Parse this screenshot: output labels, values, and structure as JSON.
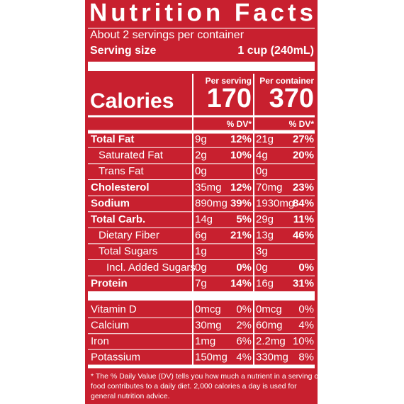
{
  "title": "Nutrition Facts",
  "servings": "About 2 servings per container",
  "serving_size_label": "Serving size",
  "serving_size": "1 cup (240mL)",
  "columns": [
    "Per serving",
    "Per container"
  ],
  "calories_label": "Calories",
  "calories": [
    "170",
    "370"
  ],
  "dv_header": "% DV*",
  "nutrients": [
    {
      "name": "Total Fat",
      "bold": true,
      "indent": 0,
      "serving": "9g",
      "serving_dv": "12%",
      "container": "21g",
      "container_dv": "27%"
    },
    {
      "name": "Saturated Fat",
      "bold": false,
      "indent": 1,
      "serving": "2g",
      "serving_dv": "10%",
      "container": "4g",
      "container_dv": "20%"
    },
    {
      "name": "Trans Fat",
      "bold": false,
      "indent": 1,
      "serving": "0g",
      "container": "0g"
    },
    {
      "name": "Cholesterol",
      "bold": true,
      "indent": 0,
      "serving": "35mg",
      "serving_dv": "12%",
      "container": "70mg",
      "container_dv": "23%"
    },
    {
      "name": "Sodium",
      "bold": true,
      "indent": 0,
      "serving": "890mg",
      "serving_dv": "39%",
      "container": "1930mg",
      "container_dv": "84%"
    },
    {
      "name": "Total Carb.",
      "bold": true,
      "indent": 0,
      "serving": "14g",
      "serving_dv": "5%",
      "container": "29g",
      "container_dv": "11%"
    },
    {
      "name": "Dietary Fiber",
      "bold": false,
      "indent": 1,
      "serving": "6g",
      "serving_dv": "21%",
      "container": "13g",
      "container_dv": "46%"
    },
    {
      "name": "Total Sugars",
      "bold": false,
      "indent": 1,
      "serving": "1g",
      "container": "3g"
    },
    {
      "name": "Incl. Added Sugars",
      "bold": false,
      "indent": 2,
      "serving": "0g",
      "serving_dv": "0%",
      "container": "0g",
      "container_dv": "0%"
    },
    {
      "name": "Protein",
      "bold": true,
      "indent": 0,
      "serving": "7g",
      "serving_dv": "14%",
      "container": "16g",
      "container_dv": "31%"
    }
  ],
  "vitamins": [
    {
      "name": "Vitamin D",
      "serving": "0mcg",
      "serving_dv": "0%",
      "container": "0mcg",
      "container_dv": "0%"
    },
    {
      "name": "Calcium",
      "serving": "30mg",
      "serving_dv": "2%",
      "container": "60mg",
      "container_dv": "4%"
    },
    {
      "name": "Iron",
      "serving": "1mg",
      "serving_dv": "6%",
      "container": "2.2mg",
      "container_dv": "10%"
    },
    {
      "name": "Potassium",
      "serving": "150mg",
      "serving_dv": "4%",
      "container": "330mg",
      "container_dv": "8%"
    }
  ],
  "footnote": [
    "* The % Daily Value (DV) tells you how much a nutrient in a serving of",
    "food contributes to a daily diet. 2,000 calories a day is used for",
    "general nutrition advice."
  ]
}
